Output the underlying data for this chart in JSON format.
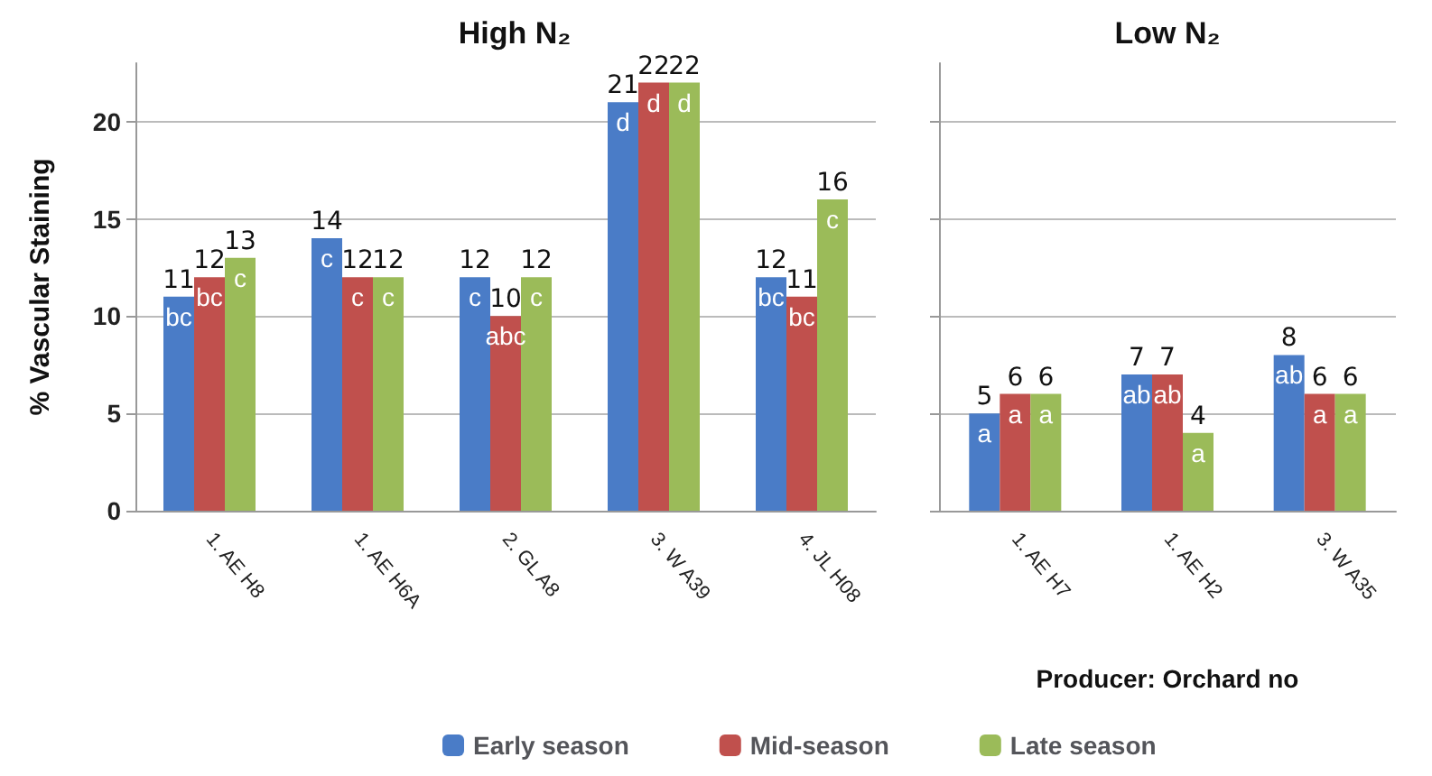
{
  "chart_data": [
    {
      "type": "bar",
      "title": "High N₂",
      "ylabel": "% Vascular Staining",
      "categories": [
        "1. AE H8",
        "1. AE H6A",
        "2. GL A8",
        "3. W A39",
        "4. JL H08"
      ],
      "series": [
        {
          "name": "Early season",
          "color": "#4a7cc7",
          "values": [
            11,
            14,
            12,
            21,
            12
          ]
        },
        {
          "name": "Mid-season",
          "color": "#c0504d",
          "values": [
            12,
            12,
            10,
            22,
            11
          ]
        },
        {
          "name": "Late season",
          "color": "#9bbb59",
          "values": [
            13,
            12,
            12,
            22,
            16
          ]
        }
      ],
      "ylim": [
        0,
        23
      ],
      "yticks": [
        0,
        5,
        10,
        15,
        20
      ],
      "grid": "y",
      "legend": "bottom",
      "data_labels": true,
      "annotations": [
        "bc",
        "bc",
        "c",
        "c",
        "c",
        "c",
        "c",
        "abc",
        "c",
        "d",
        "d",
        "d",
        "bc",
        "bc",
        "c"
      ]
    },
    {
      "type": "bar",
      "title": "Low N₂",
      "xlabel": "Producer: Orchard no",
      "categories": [
        "1. AE H7",
        "1. AE H2",
        "3. W A35"
      ],
      "series": [
        {
          "color": "#4a7cc7",
          "values": [
            5,
            7,
            8
          ]
        },
        {
          "color": "#c0504d",
          "values": [
            6,
            7,
            6
          ]
        },
        {
          "color": "#9bbb59",
          "values": [
            6,
            4,
            6
          ]
        }
      ],
      "ylim": [
        0,
        23
      ],
      "yticks": [
        0,
        5,
        10,
        15,
        20
      ],
      "grid": "y",
      "tick_labels": "x",
      "data_labels": true,
      "annotations": [
        "a",
        "a",
        "a",
        "ab",
        "ab",
        "a",
        "ab",
        "a",
        "a"
      ]
    }
  ]
}
